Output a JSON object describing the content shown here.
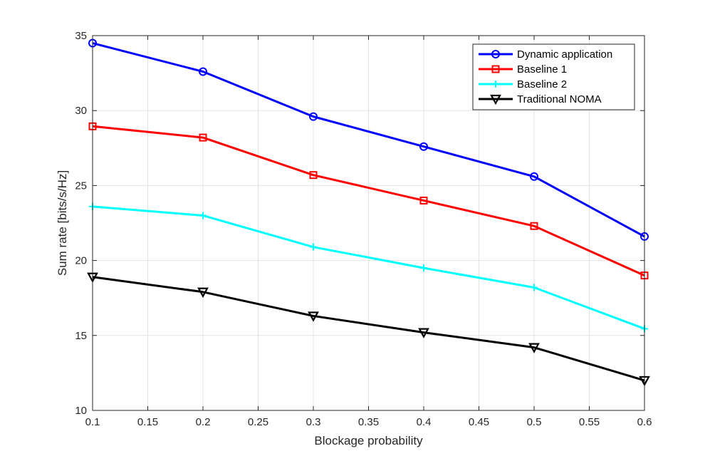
{
  "chart_data": {
    "type": "line",
    "title": "",
    "xlabel": "Blockage probability",
    "ylabel": "Sum rate [bits/s/Hz]",
    "x": [
      0.1,
      0.2,
      0.3,
      0.4,
      0.5,
      0.6
    ],
    "xlim": [
      0.1,
      0.6
    ],
    "ylim": [
      10,
      35
    ],
    "xticks": [
      "0.1",
      "0.15",
      "0.2",
      "0.25",
      "0.3",
      "0.35",
      "0.4",
      "0.45",
      "0.5",
      "0.55",
      "0.6"
    ],
    "yticks": [
      "10",
      "15",
      "20",
      "25",
      "30",
      "35"
    ],
    "grid": true,
    "legend_position": "top-right",
    "series": [
      {
        "name": "Dynamic application",
        "color": "#0000ff",
        "marker": "circle",
        "values": [
          34.5,
          32.6,
          29.6,
          27.6,
          25.6,
          21.6
        ]
      },
      {
        "name": "Baseline 1",
        "color": "#ff0000",
        "marker": "square",
        "values": [
          28.95,
          28.2,
          25.7,
          24.0,
          22.3,
          19.0
        ]
      },
      {
        "name": "Baseline 2",
        "color": "#00ffff",
        "marker": "plus",
        "values": [
          23.6,
          23.0,
          20.9,
          19.5,
          18.2,
          15.45
        ]
      },
      {
        "name": "Traditional NOMA",
        "color": "#000000",
        "marker": "triangle-down",
        "values": [
          18.9,
          17.9,
          16.3,
          15.2,
          14.2,
          12.0
        ]
      }
    ]
  }
}
